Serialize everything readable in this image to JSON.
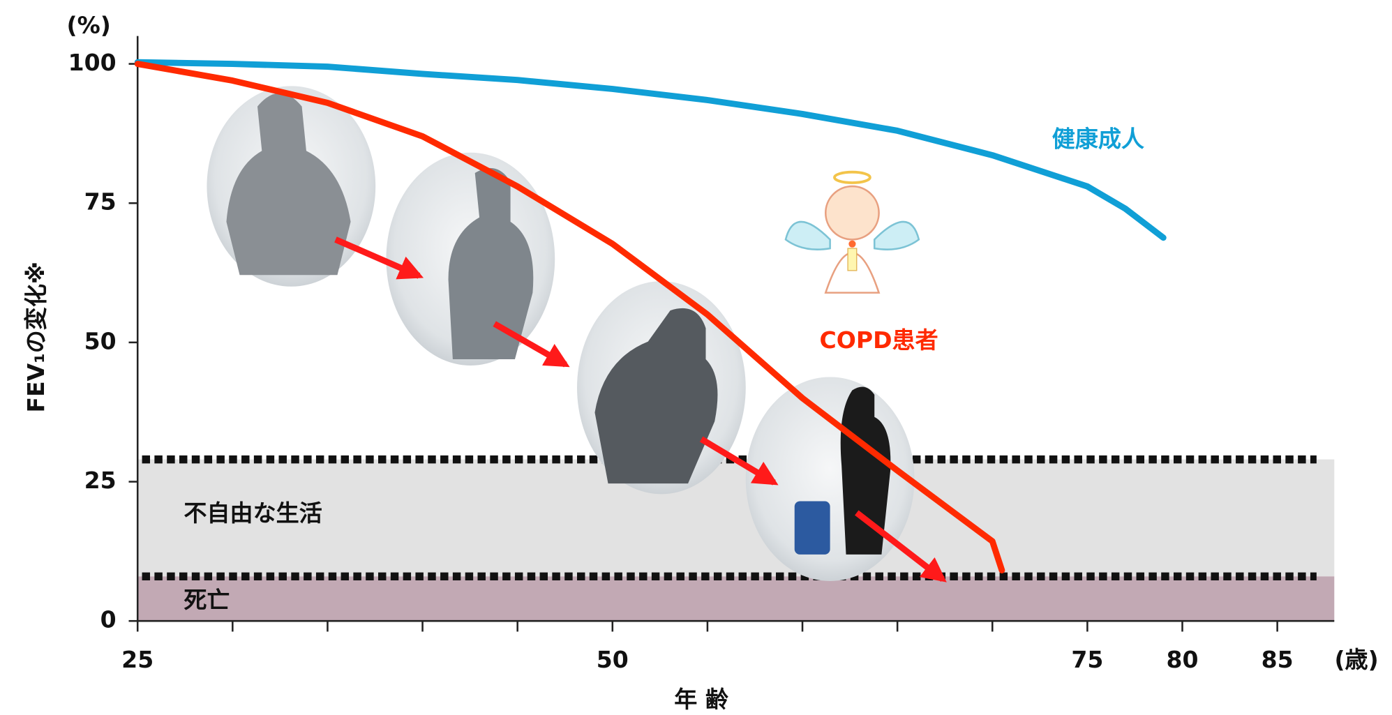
{
  "chart_data": {
    "type": "line",
    "x_label": "年 齢",
    "x_unit": "(歳)",
    "y_label": "FEV₁の変化※",
    "y_unit": "(%)",
    "xlim": [
      25,
      88
    ],
    "xticks": [
      25,
      50,
      75,
      80,
      85
    ],
    "xminorticks": [
      30,
      35,
      40,
      45,
      55,
      60,
      65,
      70
    ],
    "ylim": [
      0,
      105
    ],
    "yticks": [
      0,
      25,
      50,
      75,
      100
    ],
    "bands": [
      {
        "label": "不自由な生活",
        "from": 8,
        "to": 29,
        "color": "#e2e2e2"
      },
      {
        "label": "死亡",
        "from": 0,
        "to": 8,
        "color": "#c2a9b4"
      }
    ],
    "series": [
      {
        "name": "健康成人",
        "color": "#109fd6",
        "x": [
          25,
          30,
          35,
          40,
          45,
          50,
          55,
          60,
          65,
          70,
          75,
          77,
          79
        ],
        "values": [
          100.3,
          100,
          99.5,
          98.2,
          97.1,
          95.5,
          93.5,
          91,
          88,
          83.6,
          78,
          74,
          68.8
        ]
      },
      {
        "name": "COPD患者",
        "color": "#ff2a00",
        "x": [
          25,
          30,
          35,
          40,
          45,
          50,
          55,
          60,
          65,
          70,
          70.5
        ],
        "values": [
          100,
          97,
          93,
          87,
          78,
          67.7,
          55,
          40,
          27,
          14.3,
          9.1
        ]
      }
    ]
  }
}
